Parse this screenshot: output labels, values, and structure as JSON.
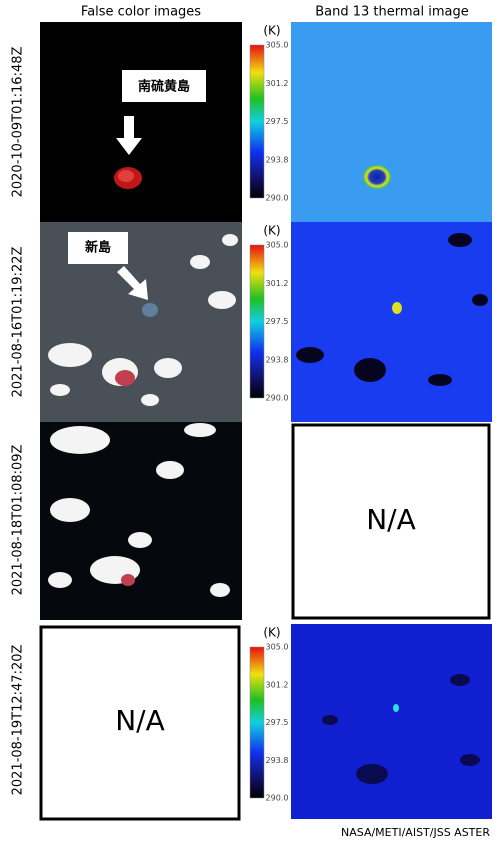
{
  "header": {
    "left": "False color images",
    "right": "Band 13 thermal image"
  },
  "rows": [
    {
      "label": "2020-10-09T01:16:48Z",
      "annotation": "南硫黄島"
    },
    {
      "label": "2021-08-16T01:19:22Z",
      "annotation": "新島"
    },
    {
      "label": "2021-08-18T01:08:09Z"
    },
    {
      "label": "2021-08-19T12:47:20Z"
    }
  ],
  "colorbar": {
    "unit": "(K)",
    "ticks": [
      "305.0",
      "301.2",
      "297.5",
      "293.8",
      "290.0"
    ]
  },
  "not_available": "N/A",
  "credit": "NASA/METI/AIST/JSS ASTER"
}
